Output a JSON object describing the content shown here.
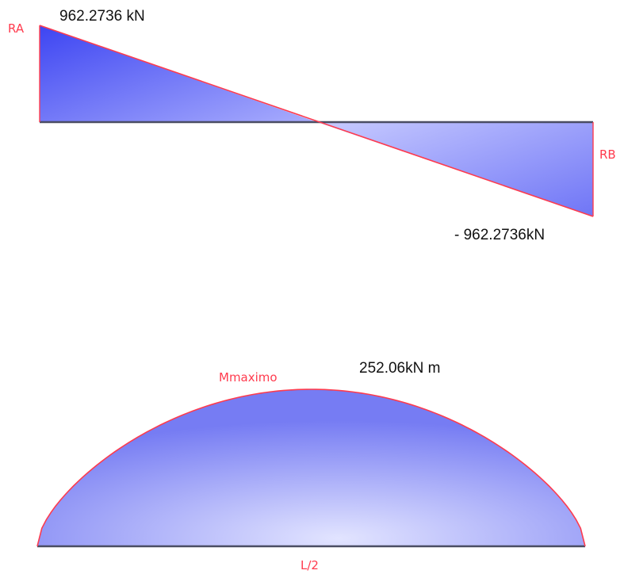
{
  "shear_diagram": {
    "left_reaction_label": "RA",
    "right_reaction_label": "RB",
    "max_shear_label": "962.2736 kN",
    "min_shear_label": "- 962.2736kN",
    "values_kN": {
      "at_A": 962.2736,
      "at_midspan": 0,
      "at_B": -962.2736
    }
  },
  "moment_diagram": {
    "max_label": "Mmaximo",
    "max_value_label": "252.06kN m",
    "position_label": "L/2",
    "max_value_kNm": 252.06,
    "shape": "parabola",
    "max_position_fraction_of_span": 0.5
  },
  "colors": {
    "outline": "#ff3b4e",
    "fill_deep": "#3d45f2",
    "fill_light": "#d4d6ff",
    "baseline": "#4a4d63"
  }
}
